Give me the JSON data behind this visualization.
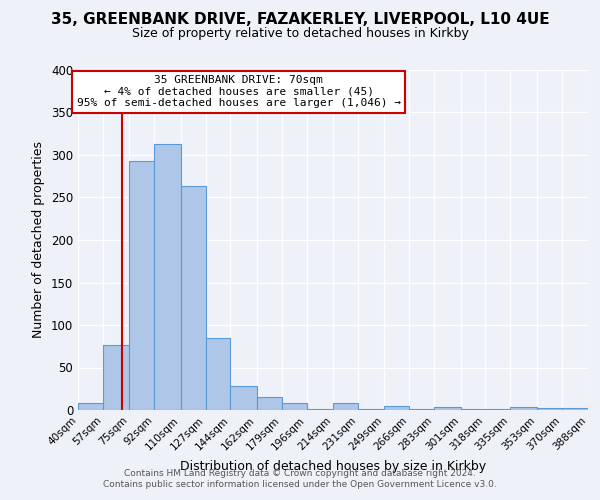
{
  "title1": "35, GREENBANK DRIVE, FAZAKERLEY, LIVERPOOL, L10 4UE",
  "title2": "Size of property relative to detached houses in Kirkby",
  "xlabel": "Distribution of detached houses by size in Kirkby",
  "ylabel": "Number of detached properties",
  "bin_edges": [
    40,
    57,
    75,
    92,
    110,
    127,
    144,
    162,
    179,
    196,
    214,
    231,
    249,
    266,
    283,
    301,
    318,
    335,
    353,
    370,
    388
  ],
  "bin_labels": [
    "40sqm",
    "57sqm",
    "75sqm",
    "92sqm",
    "110sqm",
    "127sqm",
    "144sqm",
    "162sqm",
    "179sqm",
    "196sqm",
    "214sqm",
    "231sqm",
    "249sqm",
    "266sqm",
    "283sqm",
    "301sqm",
    "318sqm",
    "335sqm",
    "353sqm",
    "370sqm",
    "388sqm"
  ],
  "counts": [
    8,
    77,
    293,
    313,
    263,
    85,
    28,
    15,
    8,
    1,
    8,
    1,
    5,
    1,
    4,
    1,
    1,
    3,
    2,
    2
  ],
  "bar_color": "#aec6e8",
  "bar_edge_color": "#5b9bd5",
  "vline_x": 70,
  "vline_color": "#cc0000",
  "annotation_line1": "35 GREENBANK DRIVE: 70sqm",
  "annotation_line2": "← 4% of detached houses are smaller (45)",
  "annotation_line3": "95% of semi-detached houses are larger (1,046) →",
  "annotation_box_color": "#ffffff",
  "annotation_box_edge_color": "#cc0000",
  "ylim": [
    0,
    400
  ],
  "yticks": [
    0,
    50,
    100,
    150,
    200,
    250,
    300,
    350,
    400
  ],
  "background_color": "#eef2f8",
  "grid_color": "#ffffff",
  "footer1": "Contains HM Land Registry data © Crown copyright and database right 2024.",
  "footer2": "Contains public sector information licensed under the Open Government Licence v3.0.",
  "title1_fontsize": 11,
  "title2_fontsize": 9
}
